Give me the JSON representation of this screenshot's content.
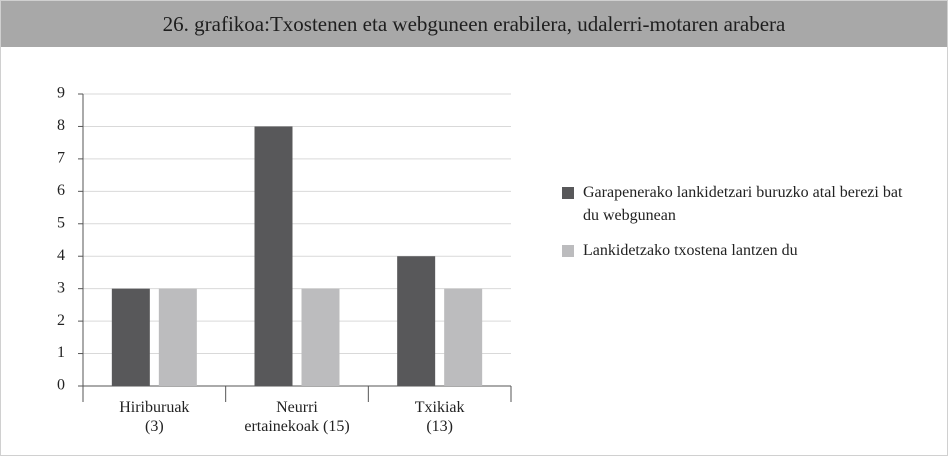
{
  "chart_data": {
    "type": "bar",
    "title": "26. grafikoa:Txostenen eta webguneen erabilera, udalerri-motaren arabera",
    "categories": [
      "Hiriburuak\n(3)",
      "Neurri\nertainekoak (15)",
      "Txikiak\n(13)"
    ],
    "series": [
      {
        "name": "Garapenerako lankidetzari buruzko atal berezi bat du webgunean",
        "color": "#58585a",
        "values": [
          3,
          8,
          4
        ]
      },
      {
        "name": "Lankidetzako txostena lantzen du",
        "color": "#bcbcbe",
        "values": [
          3,
          3,
          3
        ]
      }
    ],
    "ylim": [
      0,
      9
    ],
    "yticks": [
      0,
      1,
      2,
      3,
      4,
      5,
      6,
      7,
      8,
      9
    ],
    "grid": true,
    "legend": "right"
  }
}
